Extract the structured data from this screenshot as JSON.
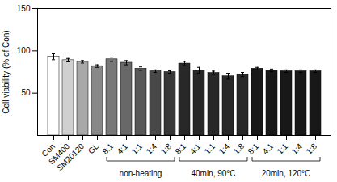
{
  "chart_data": {
    "type": "bar",
    "categories": [
      "Con",
      "SM400",
      "SM20120",
      "GL",
      "8:1",
      "4:1",
      "1:1",
      "1:4",
      "1:8",
      "8:1",
      "4:1",
      "1:1",
      "1:4",
      "1:8",
      "8:1",
      "4:1",
      "1:1",
      "1:4",
      "1:8"
    ],
    "values": [
      93,
      89,
      87,
      82,
      90,
      86,
      79,
      76,
      75,
      85,
      77,
      74,
      70,
      72,
      79,
      77,
      76,
      76,
      76
    ],
    "errors": [
      3.5,
      2.0,
      1.5,
      1.5,
      2.5,
      2.5,
      2.0,
      1.5,
      1.5,
      2.5,
      3.5,
      2.0,
      3.5,
      2.5,
      1.5,
      1.5,
      1.5,
      1.5,
      1.5
    ],
    "colors": [
      "#ffffff",
      "#d0d0d0",
      "#a8a8a8",
      "#888888",
      "#787878",
      "#686868",
      "#585858",
      "#484848",
      "#383838",
      "#282828",
      "#282828",
      "#282828",
      "#282828",
      "#282828",
      "#181818",
      "#181818",
      "#181818",
      "#181818",
      "#181818"
    ],
    "edge_color": "#000000",
    "ylabel": "Cell viability (% of Con)",
    "ylim": [
      0,
      150
    ],
    "yticks": [
      50,
      100,
      150
    ],
    "groups": [
      {
        "label": "non-heating",
        "start": 4,
        "end": 8
      },
      {
        "label": "40min, 90°C",
        "start": 9,
        "end": 13
      },
      {
        "label": "20min, 120°C",
        "start": 14,
        "end": 18
      }
    ],
    "grid": false
  }
}
